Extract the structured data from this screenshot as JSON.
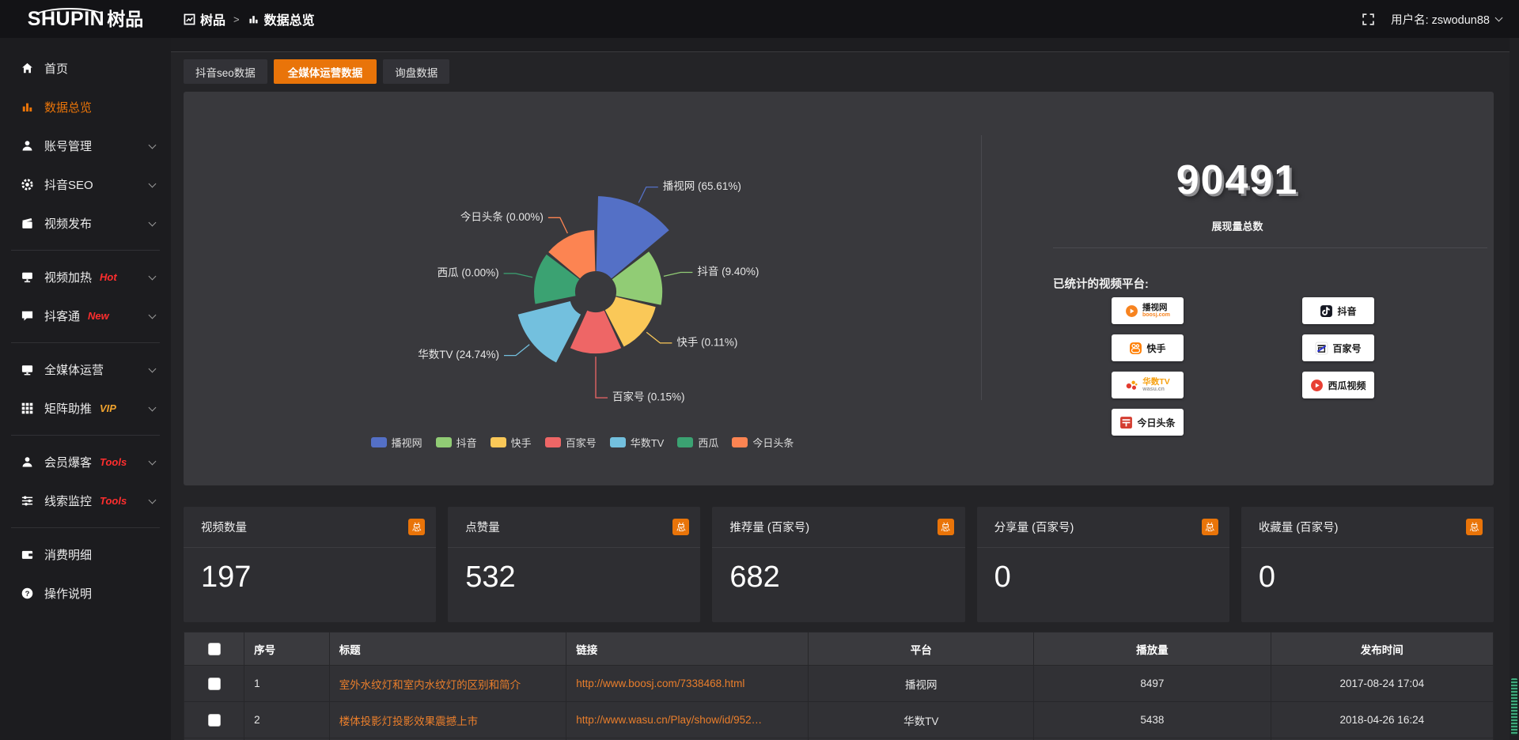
{
  "topbar": {
    "logo_en": "SHUPIN",
    "logo_cn": "树品",
    "breadcrumb": [
      {
        "label": "树品"
      },
      {
        "label": "数据总览"
      }
    ],
    "breadcrumb_sep": ">",
    "username": "用户名: zswodun88"
  },
  "sidebar": {
    "items": [
      {
        "key": "home",
        "label": "首页",
        "icon": "home",
        "active": false,
        "expandable": false,
        "badge": null,
        "divider_after": false
      },
      {
        "key": "data-overview",
        "label": "数据总览",
        "icon": "bars",
        "active": true,
        "expandable": false,
        "badge": null,
        "divider_after": false
      },
      {
        "key": "account-manage",
        "label": "账号管理",
        "icon": "user",
        "active": false,
        "expandable": true,
        "badge": null,
        "divider_after": false
      },
      {
        "key": "douyin-seo",
        "label": "抖音SEO",
        "icon": "gear",
        "active": false,
        "expandable": true,
        "badge": null,
        "divider_after": false
      },
      {
        "key": "video-publish",
        "label": "视频发布",
        "icon": "clapper",
        "active": false,
        "expandable": true,
        "badge": null,
        "divider_after": true
      },
      {
        "key": "video-heat",
        "label": "视频加热",
        "icon": "screen",
        "active": false,
        "expandable": true,
        "badge": "Hot",
        "badge_color": "#ff2e2e",
        "divider_after": false
      },
      {
        "key": "douketong",
        "label": "抖客通",
        "icon": "chat",
        "active": false,
        "expandable": true,
        "badge": "New",
        "badge_color": "#ff2e2e",
        "divider_after": true
      },
      {
        "key": "media-ops",
        "label": "全媒体运营",
        "icon": "monitor",
        "active": false,
        "expandable": true,
        "badge": null,
        "divider_after": false
      },
      {
        "key": "matrix-boost",
        "label": "矩阵助推",
        "icon": "grid",
        "active": false,
        "expandable": true,
        "badge": "VIP",
        "badge_color": "#f0a32e",
        "divider_after": true
      },
      {
        "key": "member-burst",
        "label": "会员爆客",
        "icon": "user",
        "active": false,
        "expandable": true,
        "badge": "Tools",
        "badge_color": "#ff2e2e",
        "divider_after": false
      },
      {
        "key": "clue-monitor",
        "label": "线索监控",
        "icon": "sliders",
        "active": false,
        "expandable": true,
        "badge": "Tools",
        "badge_color": "#ff2e2e",
        "divider_after": true
      },
      {
        "key": "expense-detail",
        "label": "消费明细",
        "icon": "wallet",
        "active": false,
        "expandable": false,
        "badge": null,
        "divider_after": false
      },
      {
        "key": "help",
        "label": "操作说明",
        "icon": "question",
        "active": false,
        "expandable": false,
        "badge": null,
        "divider_after": false
      }
    ]
  },
  "tabs": [
    {
      "key": "douyin-seo-data",
      "label": "抖音seo数据",
      "active": false
    },
    {
      "key": "media-ops-data",
      "label": "全媒体运营数据",
      "active": true
    },
    {
      "key": "inquiry-data",
      "label": "询盘数据",
      "active": false
    }
  ],
  "chart_data": {
    "type": "pie",
    "subtype": "nightingale-rose",
    "unit": "percent",
    "label_format": "{name} ({value}%)",
    "legend_position": "bottom",
    "series": [
      {
        "name": "播视网",
        "value": 65.61,
        "color": "#5470c6",
        "offset": false
      },
      {
        "name": "抖音",
        "value": 9.4,
        "color": "#91cc75",
        "offset": false
      },
      {
        "name": "快手",
        "value": 0.11,
        "color": "#fac858",
        "offset": false
      },
      {
        "name": "百家号",
        "value": 0.15,
        "color": "#ee6666",
        "offset": false
      },
      {
        "name": "华数TV",
        "value": 24.74,
        "color": "#73c0de",
        "offset": true
      },
      {
        "name": "西瓜",
        "value": 0.0,
        "color": "#3ba272",
        "offset": false
      },
      {
        "name": "今日头条",
        "value": 0.0,
        "color": "#fc8452",
        "offset": false
      }
    ]
  },
  "summary": {
    "total": "90491",
    "total_label": "展现量总数",
    "platforms_label": "已统计的视频平台:",
    "platforms_left": [
      {
        "key": "boosj",
        "name": "播视网",
        "sub": "boosj.com"
      },
      {
        "key": "kuaishou",
        "name": "快手",
        "sub": null
      },
      {
        "key": "wasu",
        "name": "华数TV",
        "sub": "wasu.cn"
      },
      {
        "key": "toutiao",
        "name": "今日头条",
        "sub": null
      }
    ],
    "platforms_right": [
      {
        "key": "douyin",
        "name": "抖音",
        "sub": null
      },
      {
        "key": "baijia",
        "name": "百家号",
        "sub": null
      },
      {
        "key": "xigua",
        "name": "西瓜视频",
        "sub": null
      }
    ]
  },
  "stat_cards": [
    {
      "title": "视频数量",
      "badge": "总",
      "value": "197"
    },
    {
      "title": "点赞量",
      "badge": "总",
      "value": "532"
    },
    {
      "title": "推荐量 (百家号)",
      "badge": "总",
      "value": "682"
    },
    {
      "title": "分享量 (百家号)",
      "badge": "总",
      "value": "0"
    },
    {
      "title": "收藏量 (百家号)",
      "badge": "总",
      "value": "0"
    }
  ],
  "table": {
    "headers": [
      "序号",
      "标题",
      "链接",
      "平台",
      "播放量",
      "发布时间"
    ],
    "rows": [
      {
        "index": "1",
        "title": "室外水纹灯和室内水纹灯的区别和简介",
        "link": "http://www.boosj.com/7338468.html",
        "platform": "播视网",
        "plays": "8497",
        "time": "2017-08-24 17:04"
      },
      {
        "index": "2",
        "title": "楼体投影灯投影效果震撼上市",
        "link": "http://www.wasu.cn/Play/show/id/952…",
        "platform": "华数TV",
        "plays": "5438",
        "time": "2018-04-26 16:24"
      }
    ]
  },
  "colors": {
    "accent": "#e97409",
    "link": "#ea7e2b",
    "badge_red": "#ff2e2e",
    "badge_vip": "#f0a32e"
  }
}
